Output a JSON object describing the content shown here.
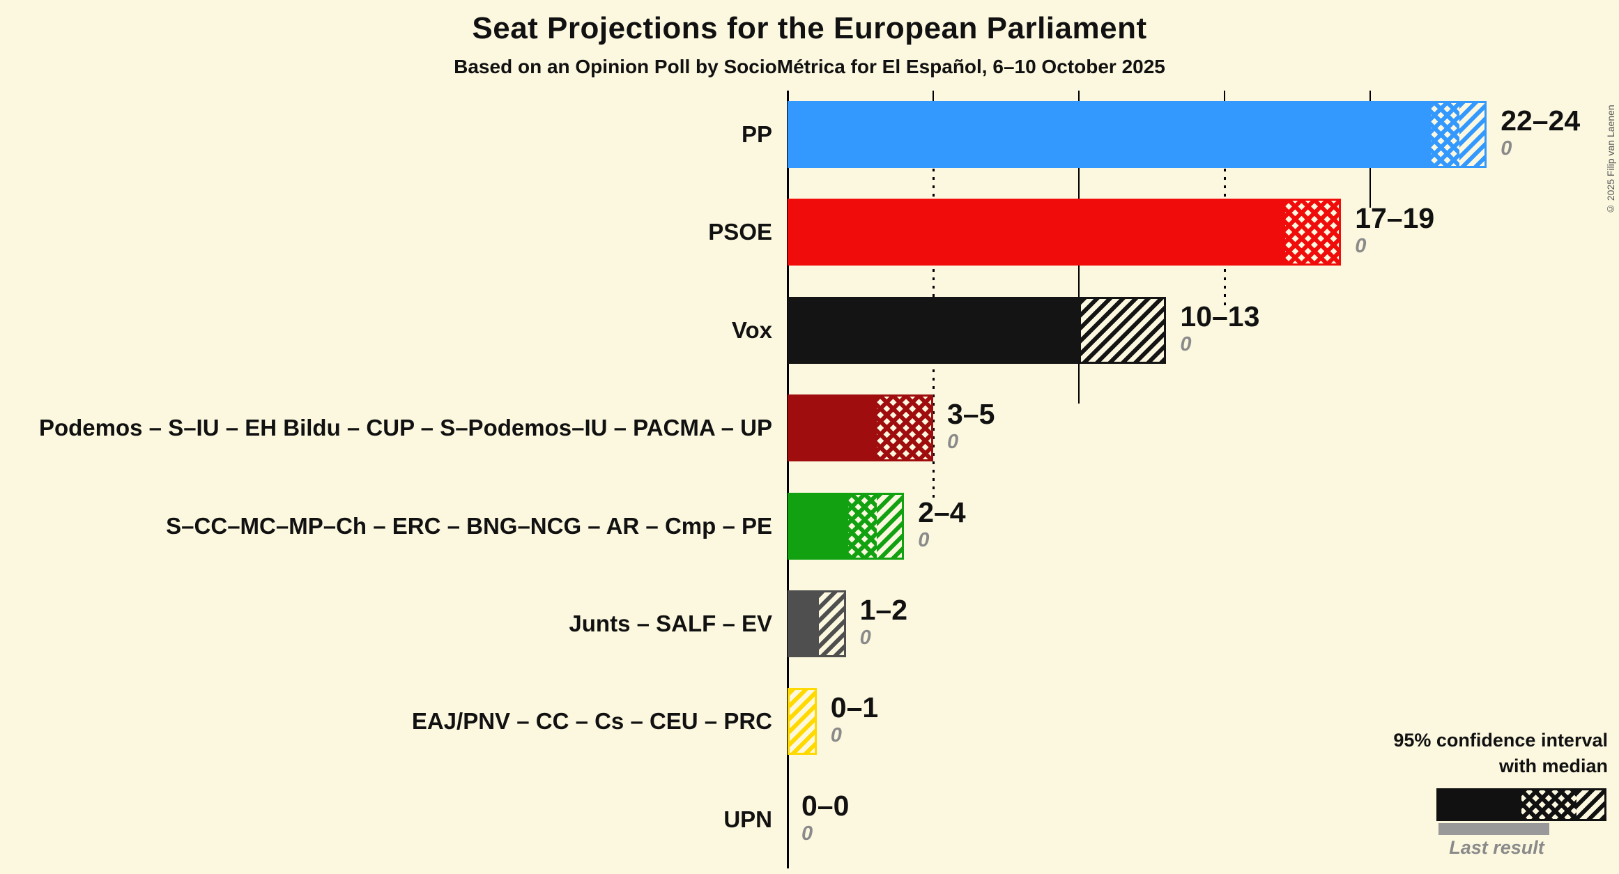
{
  "title": "Seat Projections for the European Parliament",
  "subtitle": "Based on an Opinion Poll by SocioMétrica for El Español, 6–10 October 2025",
  "copyright": "© 2025 Filip van Laenen",
  "legend": {
    "ci_line1": "95% confidence interval",
    "ci_line2": "with median",
    "last_result": "Last result"
  },
  "colors": {
    "background": "#FCF8DF",
    "axis": "#000000",
    "legend_sample": "#111111",
    "last_result_bar": "#999999",
    "secondary_text": "#8A8A8A"
  },
  "chart_data": {
    "type": "bar",
    "orientation": "horizontal",
    "unit": "seats",
    "x_axis": {
      "min": 0,
      "max": 28,
      "solid_gridlines": [
        0,
        10,
        20
      ],
      "dotted_gridlines": [
        5,
        15
      ]
    },
    "parties": [
      {
        "label": "PP",
        "low": 22,
        "median": 23,
        "high": 24,
        "range_label": "22–24",
        "last_result": "0",
        "color": "#3399FF"
      },
      {
        "label": "PSOE",
        "low": 17,
        "median": 19,
        "high": 19,
        "range_label": "17–19",
        "last_result": "0",
        "color": "#F10C0C"
      },
      {
        "label": "Vox",
        "low": 10,
        "median": 10,
        "high": 13,
        "range_label": "10–13",
        "last_result": "0",
        "color": "#141414"
      },
      {
        "label": "Podemos – S–IU – EH Bildu – CUP – S–Podemos–IU – PACMA – UP",
        "low": 3,
        "median": 5,
        "high": 5,
        "range_label": "3–5",
        "last_result": "0",
        "color": "#9F0D0E"
      },
      {
        "label": "S–CC–MC–MP–Ch – ERC – BNG–NCG – AR – Cmp – PE",
        "low": 2,
        "median": 3,
        "high": 4,
        "range_label": "2–4",
        "last_result": "0",
        "color": "#11A111"
      },
      {
        "label": "Junts – SALF – EV",
        "low": 1,
        "median": 1,
        "high": 2,
        "range_label": "1–2",
        "last_result": "0",
        "color": "#4F4F4F"
      },
      {
        "label": "EAJ/PNV – CC – Cs – CEU – PRC",
        "low": 0,
        "median": 0,
        "high": 1,
        "range_label": "0–1",
        "last_result": "0",
        "color": "#FFD900"
      },
      {
        "label": "UPN",
        "low": 0,
        "median": 0,
        "high": 0,
        "range_label": "0–0",
        "last_result": "0",
        "color": "#777777"
      }
    ]
  }
}
